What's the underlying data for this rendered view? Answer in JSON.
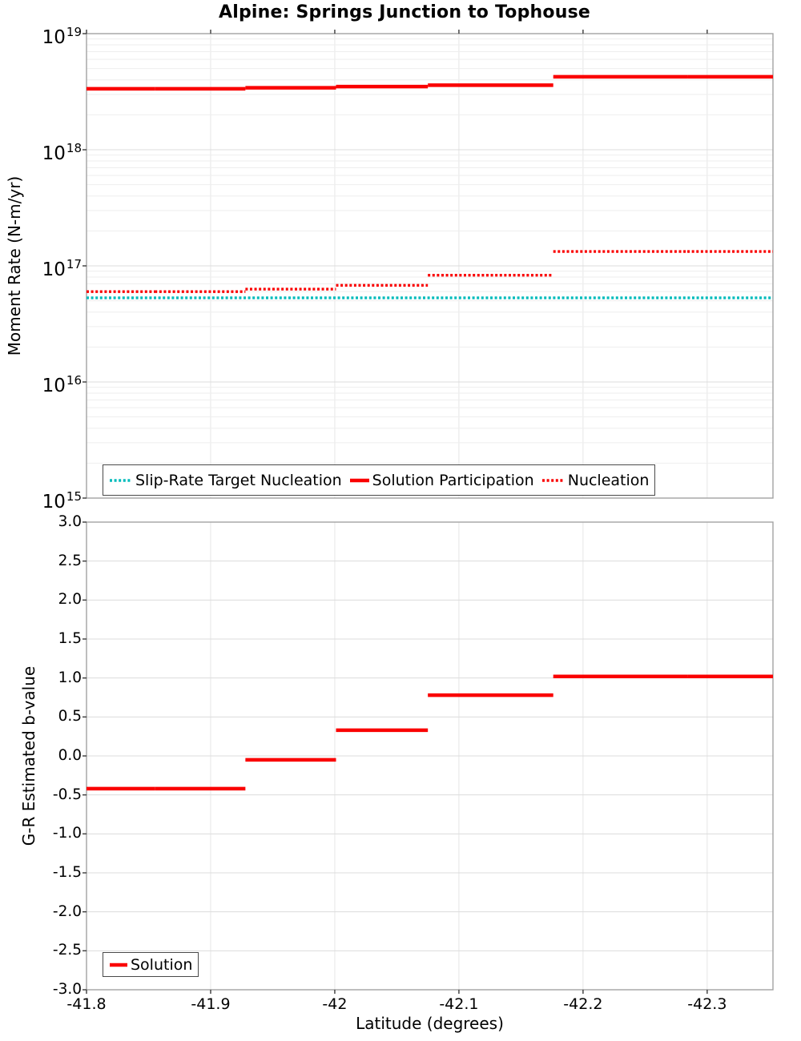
{
  "title": "Alpine: Springs Junction to Tophouse",
  "xlabel": "Latitude (degrees)",
  "style": {
    "red": "#fa0000",
    "cyan": "#00bbbb",
    "frame": "#a3a3a3",
    "grid_major": "#dcdcdc",
    "grid_minor": "#eeeeee",
    "grid_vertical": "#e6e6e6",
    "tick_color": "#3a3a3a",
    "legend_border": "#4a4a4a"
  },
  "chart_data": [
    {
      "type": "line",
      "subtype": "step-segments",
      "title": "Alpine: Springs Junction to Tophouse",
      "xlabel": "Latitude (degrees)",
      "ylabel": "Moment Rate (N-m/yr)",
      "yscale": "log",
      "ylim": [
        1000000000000000.0,
        1e+19
      ],
      "xlim": [
        -41.8,
        -42.353
      ],
      "x_ticks": [
        -41.8,
        -41.9,
        -42.0,
        -42.1,
        -42.2,
        -42.3
      ],
      "x_tick_labels": [
        "-41.8",
        "-41.9",
        "-42",
        "-42.1",
        "-42.2",
        "-42.3"
      ],
      "y_tick_exponents": [
        19,
        18,
        17,
        16,
        15
      ],
      "grid": "on",
      "legend_position": "inside-bottom-left",
      "series": [
        {
          "name": "Slip-Rate Target Nucleation",
          "color": "#00bbbb",
          "style": "dotted",
          "width": 3.4,
          "segments": [
            {
              "x0": -41.8,
              "x1": -42.353,
              "y": 5.3e+16
            }
          ]
        },
        {
          "name": "Solution Participation",
          "color": "#fa0000",
          "style": "solid",
          "width": 4.5,
          "segments": [
            {
              "x0": -41.8,
              "x1": -41.855,
              "y": 3.35e+18
            },
            {
              "x0": -41.855,
              "x1": -41.928,
              "y": 3.35e+18
            },
            {
              "x0": -41.928,
              "x1": -42.001,
              "y": 3.42e+18
            },
            {
              "x0": -42.001,
              "x1": -42.075,
              "y": 3.5e+18
            },
            {
              "x0": -42.075,
              "x1": -42.176,
              "y": 3.6e+18
            },
            {
              "x0": -42.176,
              "x1": -42.284,
              "y": 4.25e+18
            },
            {
              "x0": -42.284,
              "x1": -42.353,
              "y": 4.25e+18
            }
          ]
        },
        {
          "name": "Nucleation",
          "color": "#fa0000",
          "style": "dotted",
          "width": 3.4,
          "segments": [
            {
              "x0": -41.8,
              "x1": -41.855,
              "y": 6e+16
            },
            {
              "x0": -41.855,
              "x1": -41.928,
              "y": 6e+16
            },
            {
              "x0": -41.928,
              "x1": -42.001,
              "y": 6.3e+16
            },
            {
              "x0": -42.001,
              "x1": -42.075,
              "y": 6.8e+16
            },
            {
              "x0": -42.075,
              "x1": -42.176,
              "y": 8.3e+16
            },
            {
              "x0": -42.176,
              "x1": -42.284,
              "y": 1.33e+17
            },
            {
              "x0": -42.284,
              "x1": -42.353,
              "y": 1.33e+17
            }
          ]
        }
      ]
    },
    {
      "type": "line",
      "subtype": "step-segments",
      "xlabel": "Latitude (degrees)",
      "ylabel": "G-R Estimated b-value",
      "yscale": "linear",
      "ylim": [
        -3.0,
        3.0
      ],
      "xlim": [
        -41.8,
        -42.353
      ],
      "x_ticks": [
        -41.8,
        -41.9,
        -42.0,
        -42.1,
        -42.2,
        -42.3
      ],
      "x_tick_labels": [
        "-41.8",
        "-41.9",
        "-42",
        "-42.1",
        "-42.2",
        "-42.3"
      ],
      "y_ticks": [
        3.0,
        2.5,
        2.0,
        1.5,
        1.0,
        0.5,
        0.0,
        -0.5,
        -1.0,
        -1.5,
        -2.0,
        -2.5,
        -3.0
      ],
      "grid": "on",
      "legend_position": "inside-bottom-left",
      "series": [
        {
          "name": "Solution",
          "color": "#fa0000",
          "style": "solid",
          "width": 4.5,
          "segments": [
            {
              "x0": -41.8,
              "x1": -41.855,
              "y": -0.42
            },
            {
              "x0": -41.855,
              "x1": -41.928,
              "y": -0.42
            },
            {
              "x0": -41.928,
              "x1": -42.001,
              "y": -0.05
            },
            {
              "x0": -42.001,
              "x1": -42.075,
              "y": 0.33
            },
            {
              "x0": -42.075,
              "x1": -42.176,
              "y": 0.78
            },
            {
              "x0": -42.176,
              "x1": -42.284,
              "y": 1.02
            },
            {
              "x0": -42.284,
              "x1": -42.353,
              "y": 1.02
            }
          ]
        }
      ]
    }
  ]
}
